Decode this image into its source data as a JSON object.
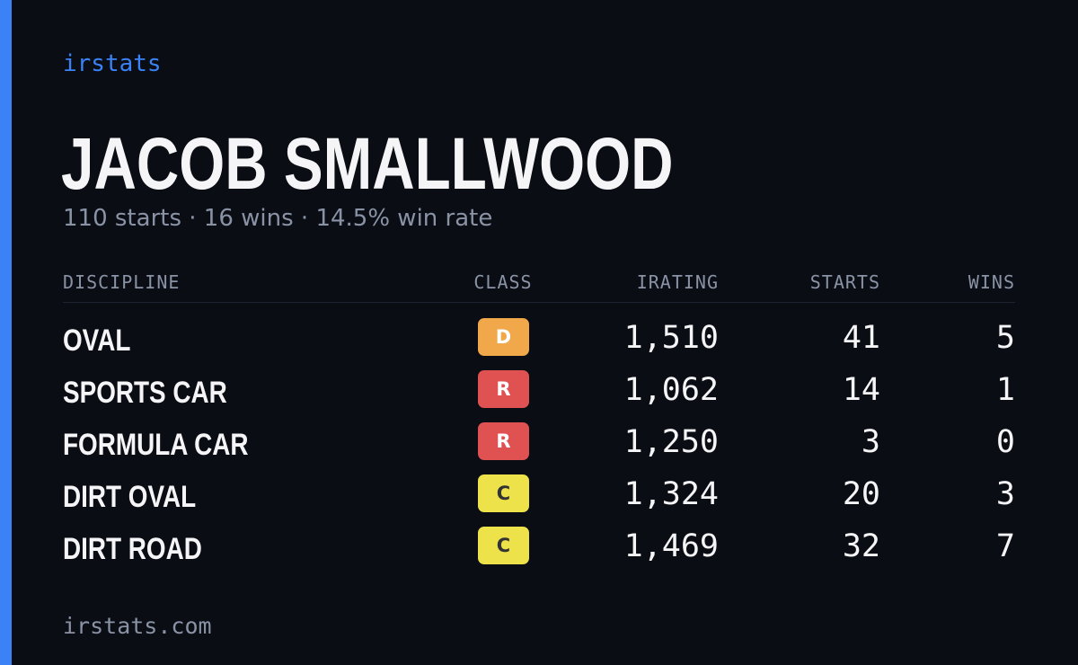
{
  "brand": "irstats",
  "driver": {
    "name": "JACOB SMALLWOOD",
    "summary": "110 starts · 16 wins · 14.5% win rate"
  },
  "table": {
    "headers": {
      "discipline": "DISCIPLINE",
      "class": "CLASS",
      "irating": "IRATING",
      "starts": "STARTS",
      "wins": "WINS"
    },
    "rows": [
      {
        "discipline": "OVAL",
        "class": "D",
        "class_bg": "#f0a84a",
        "class_fg": "#ffffff",
        "irating": "1,510",
        "starts": "41",
        "wins": "5"
      },
      {
        "discipline": "SPORTS CAR",
        "class": "R",
        "class_bg": "#e05252",
        "class_fg": "#ffffff",
        "irating": "1,062",
        "starts": "14",
        "wins": "1"
      },
      {
        "discipline": "FORMULA CAR",
        "class": "R",
        "class_bg": "#e05252",
        "class_fg": "#ffffff",
        "irating": "1,250",
        "starts": "3",
        "wins": "0"
      },
      {
        "discipline": "DIRT OVAL",
        "class": "C",
        "class_bg": "#ede24a",
        "class_fg": "#333333",
        "irating": "1,324",
        "starts": "20",
        "wins": "3"
      },
      {
        "discipline": "DIRT ROAD",
        "class": "C",
        "class_bg": "#ede24a",
        "class_fg": "#333333",
        "irating": "1,469",
        "starts": "32",
        "wins": "7"
      }
    ]
  },
  "footer": "irstats.com",
  "colors": {
    "background": "#0a0d14",
    "accent": "#3b82f6",
    "text": "#f5f5f7",
    "muted": "#8a93a6"
  }
}
